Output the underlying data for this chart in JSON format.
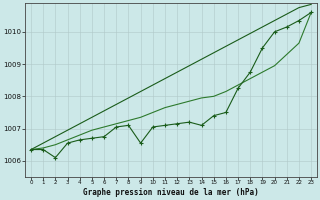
{
  "title": "Graphe pression niveau de la mer (hPa)",
  "x_values": [
    0,
    1,
    2,
    3,
    4,
    5,
    6,
    7,
    8,
    9,
    10,
    11,
    12,
    13,
    14,
    15,
    16,
    17,
    18,
    19,
    20,
    21,
    22,
    23
  ],
  "line_straight1": [
    1006.35,
    1006.55,
    1006.75,
    1006.95,
    1007.15,
    1007.35,
    1007.55,
    1007.75,
    1007.95,
    1008.15,
    1008.35,
    1008.55,
    1008.75,
    1008.95,
    1009.15,
    1009.35,
    1009.55,
    1009.75,
    1009.95,
    1010.15,
    1010.35,
    1010.55,
    1010.75,
    1010.85
  ],
  "line_straight2": [
    1006.35,
    1006.4,
    1006.5,
    1006.65,
    1006.8,
    1006.95,
    1007.05,
    1007.15,
    1007.25,
    1007.35,
    1007.5,
    1007.65,
    1007.75,
    1007.85,
    1007.95,
    1008.0,
    1008.15,
    1008.35,
    1008.55,
    1008.75,
    1008.95,
    1009.3,
    1009.65,
    1010.6
  ],
  "line_data": [
    1006.35,
    1006.35,
    1006.1,
    1006.55,
    1006.65,
    1006.7,
    1006.75,
    1007.05,
    1007.1,
    1006.55,
    1007.05,
    1007.1,
    1007.15,
    1007.2,
    1007.1,
    1007.4,
    1007.5,
    1008.25,
    1008.75,
    1009.5,
    1010.0,
    1010.15,
    1010.35,
    1010.6
  ],
  "bg_color": "#cce8e8",
  "grid_color": "#b0c8c8",
  "line_color1": "#1a5c1a",
  "line_color2": "#2d7a2d",
  "line_color3": "#1a5c1a",
  "ylim_min": 1005.5,
  "ylim_max": 1010.9,
  "yticks": [
    1006,
    1007,
    1008,
    1009,
    1010
  ],
  "xticks": [
    0,
    1,
    2,
    3,
    4,
    5,
    6,
    7,
    8,
    9,
    10,
    11,
    12,
    13,
    14,
    15,
    16,
    17,
    18,
    19,
    20,
    21,
    22,
    23
  ]
}
